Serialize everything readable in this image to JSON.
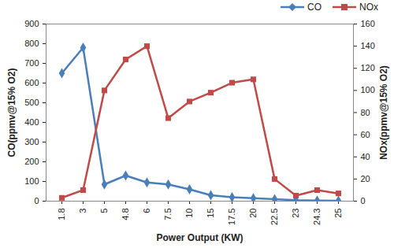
{
  "chart_data": {
    "type": "line",
    "x_label": "Power Output (KW)",
    "y_label": "CO(ppmv@15% O2)",
    "y2_label": "NOx(ppmv@15% O2)",
    "categories": [
      "1.8",
      "3",
      "5",
      "4.8",
      "6",
      "7.5",
      "10",
      "15",
      "17.5",
      "20",
      "22.5",
      "23",
      "24.3",
      "25"
    ],
    "series": [
      {
        "name": "CO",
        "color": "#4a7ebb",
        "marker": "diamond",
        "axis": "y",
        "values": [
          650,
          780,
          85,
          130,
          95,
          85,
          60,
          30,
          20,
          15,
          10,
          5,
          3,
          2
        ]
      },
      {
        "name": "NOx",
        "color": "#be4b48",
        "marker": "square",
        "axis": "y2",
        "values": [
          3,
          10,
          100,
          128,
          140,
          75,
          90,
          98,
          107,
          110,
          20,
          5,
          10,
          7
        ]
      }
    ],
    "ylim": [
      0,
      900
    ],
    "yticks": [
      0,
      100,
      200,
      300,
      400,
      500,
      600,
      700,
      800,
      900
    ],
    "y2lim": [
      0,
      160
    ],
    "y2ticks": [
      0,
      20,
      40,
      60,
      80,
      100,
      120,
      140,
      160
    ],
    "grid": false,
    "legend": "top-right"
  }
}
